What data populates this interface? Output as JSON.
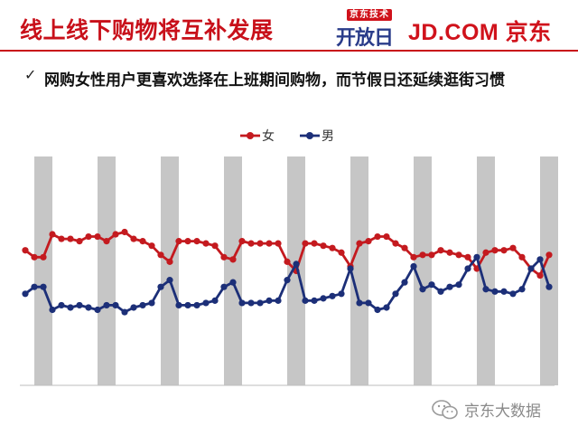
{
  "header": {
    "title": "线上线下购物将互补发展",
    "logo_kaifang_tag": "京东技术",
    "logo_kaifang_word": "开放日",
    "logo_jd": "JD.COM 京东"
  },
  "subtitle": {
    "check": "✓",
    "text": "网购女性用户更喜欢选择在上班期间购物，而节假日还延续逛街习惯"
  },
  "watermark": {
    "text": "京东大数据"
  },
  "colors": {
    "brand_red": "#c8101a",
    "female": "#c41a1f",
    "male": "#1c2f78",
    "weekend_band": "#c6c6c6"
  },
  "chart_data": {
    "type": "line",
    "title": "",
    "xlabel": "",
    "ylabel": "",
    "legend_position": "top-center",
    "ylim": [
      0,
      100
    ],
    "weekend_bands": [
      2,
      9,
      16,
      23,
      30,
      37,
      44,
      51,
      58
    ],
    "series": [
      {
        "name": "女",
        "color": "#c41a1f",
        "values": [
          59,
          56,
          56,
          66,
          64,
          64,
          63,
          65,
          65,
          63,
          66,
          67,
          64,
          63,
          61,
          57,
          54,
          63,
          63,
          63,
          62,
          61,
          56,
          55,
          63,
          62,
          62,
          62,
          62,
          54,
          50,
          62,
          62,
          61,
          60,
          58,
          52,
          62,
          63,
          65,
          65,
          62,
          60,
          56,
          57,
          57,
          59,
          58,
          57,
          56,
          51,
          58,
          59,
          59,
          60,
          56,
          51,
          48,
          57
        ]
      },
      {
        "name": "男",
        "color": "#1c2f78",
        "values": [
          40,
          43,
          43,
          33,
          35,
          34,
          35,
          34,
          33,
          35,
          35,
          32,
          34,
          35,
          36,
          43,
          46,
          35,
          35,
          35,
          36,
          37,
          43,
          45,
          36,
          36,
          36,
          37,
          37,
          46,
          53,
          37,
          37,
          38,
          39,
          40,
          51,
          36,
          36,
          33,
          34,
          40,
          45,
          52,
          42,
          44,
          41,
          43,
          44,
          51,
          56,
          42,
          41,
          41,
          40,
          42,
          51,
          55,
          43
        ]
      }
    ]
  }
}
